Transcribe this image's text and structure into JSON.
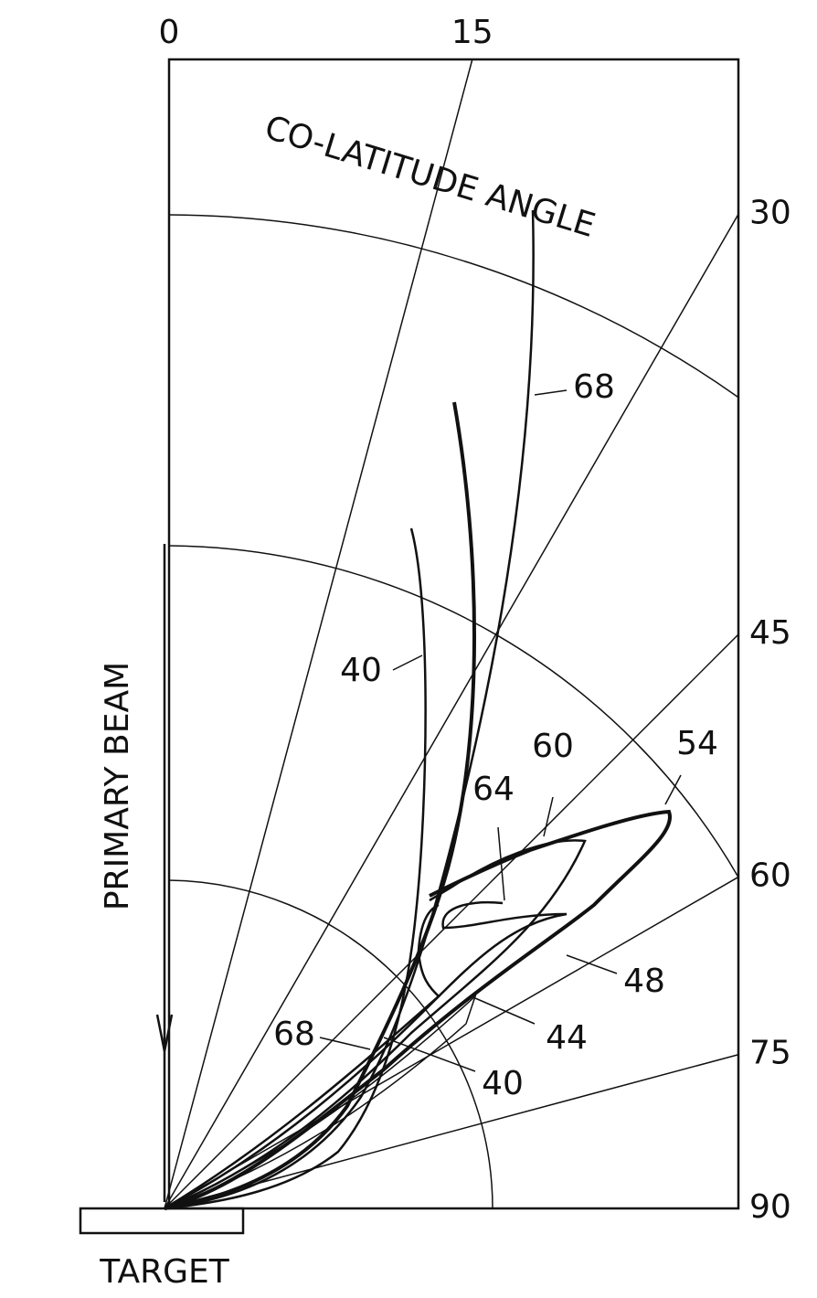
{
  "title": "CO-LATITUDE ANGLE",
  "angles": [
    0,
    15,
    30,
    45,
    60,
    75,
    90
  ],
  "beam_label": "PRIMARY BEAM",
  "target_label": "TARGET",
  "curve_labels": [
    "68",
    "40",
    "60",
    "54",
    "64",
    "48",
    "44",
    "68",
    "40"
  ]
}
